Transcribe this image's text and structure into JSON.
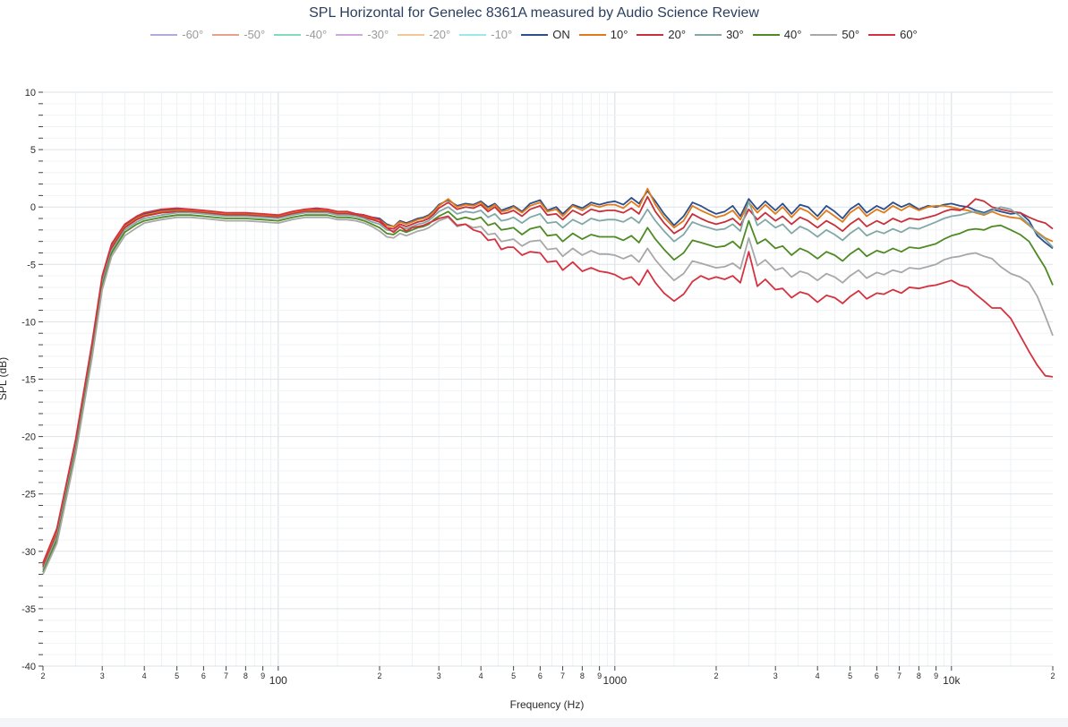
{
  "chart_data": {
    "type": "line",
    "title": "SPL Horizontal for Genelec 8361A measured by Audio Science Review",
    "xlabel": "Frequency (Hz)",
    "ylabel": "SPL (dB)",
    "xscale": "log",
    "xlim": [
      20,
      20000
    ],
    "ylim": [
      -40,
      10
    ],
    "grid": true,
    "legend_position": "top-center",
    "y_ticks": [
      "10",
      "5",
      "0",
      "-5",
      "-10",
      "-15",
      "-20",
      "-25",
      "-30",
      "-35",
      "-40"
    ],
    "x_ticks": [
      {
        "value": 20,
        "label": "2"
      },
      {
        "value": 30,
        "label": "3"
      },
      {
        "value": 40,
        "label": "4"
      },
      {
        "value": 50,
        "label": "5"
      },
      {
        "value": 60,
        "label": "6"
      },
      {
        "value": 70,
        "label": "7"
      },
      {
        "value": 80,
        "label": "8"
      },
      {
        "value": 90,
        "label": "9"
      },
      {
        "value": 100,
        "label": "100"
      },
      {
        "value": 200,
        "label": "2"
      },
      {
        "value": 300,
        "label": "3"
      },
      {
        "value": 400,
        "label": "4"
      },
      {
        "value": 500,
        "label": "5"
      },
      {
        "value": 600,
        "label": "6"
      },
      {
        "value": 700,
        "label": "7"
      },
      {
        "value": 800,
        "label": "8"
      },
      {
        "value": 900,
        "label": "9"
      },
      {
        "value": 1000,
        "label": "1000"
      },
      {
        "value": 2000,
        "label": "2"
      },
      {
        "value": 3000,
        "label": "3"
      },
      {
        "value": 4000,
        "label": "4"
      },
      {
        "value": 5000,
        "label": "5"
      },
      {
        "value": 6000,
        "label": "6"
      },
      {
        "value": 7000,
        "label": "7"
      },
      {
        "value": 8000,
        "label": "8"
      },
      {
        "value": 9000,
        "label": "9"
      },
      {
        "value": 10000,
        "label": "10k"
      },
      {
        "value": 20000,
        "label": "2"
      }
    ],
    "x": [
      20,
      22,
      25,
      28,
      30,
      32,
      35,
      38,
      40,
      45,
      50,
      55,
      60,
      70,
      80,
      90,
      100,
      110,
      120,
      130,
      140,
      150,
      160,
      170,
      180,
      190,
      200,
      210,
      220,
      230,
      240,
      250,
      260,
      270,
      280,
      290,
      300,
      320,
      340,
      360,
      380,
      400,
      420,
      440,
      460,
      480,
      500,
      530,
      560,
      600,
      630,
      670,
      700,
      750,
      800,
      850,
      900,
      950,
      1000,
      1060,
      1120,
      1180,
      1250,
      1320,
      1400,
      1500,
      1600,
      1700,
      1800,
      1900,
      2000,
      2120,
      2240,
      2360,
      2500,
      2650,
      2800,
      3000,
      3150,
      3350,
      3550,
      3750,
      4000,
      4250,
      4500,
      4750,
      5000,
      5300,
      5600,
      6000,
      6300,
      6700,
      7100,
      7500,
      8000,
      8500,
      9000,
      9500,
      10000,
      10600,
      11200,
      11800,
      12500,
      13200,
      14000,
      15000,
      16000,
      17000,
      18000,
      19000,
      20000
    ],
    "series": [
      {
        "name": "-60°",
        "color": "#b5a8e0",
        "visible": false,
        "values": null
      },
      {
        "name": "-50°",
        "color": "#e8a08a",
        "visible": false,
        "values": null
      },
      {
        "name": "-40°",
        "color": "#7fdcc0",
        "visible": false,
        "values": null
      },
      {
        "name": "-30°",
        "color": "#cfa8e0",
        "visible": false,
        "values": null
      },
      {
        "name": "-20°",
        "color": "#f5c59a",
        "visible": false,
        "values": null
      },
      {
        "name": "-10°",
        "color": "#9aeaea",
        "visible": false,
        "values": null
      },
      {
        "name": "ON",
        "color": "#2c4f8c",
        "visible": true,
        "values": [
          -31.2,
          -28.2,
          -20.5,
          -12.0,
          -6.2,
          -3.4,
          -1.6,
          -0.9,
          -0.6,
          -0.3,
          -0.2,
          -0.3,
          -0.4,
          -0.6,
          -0.6,
          -0.7,
          -0.8,
          -0.5,
          -0.3,
          -0.2,
          -0.3,
          -0.5,
          -0.4,
          -0.6,
          -0.7,
          -0.9,
          -1.0,
          -1.5,
          -1.7,
          -1.2,
          -1.4,
          -1.2,
          -1.0,
          -0.9,
          -0.7,
          -0.3,
          0.2,
          0.6,
          0.1,
          0.3,
          0.2,
          0.5,
          0.0,
          0.3,
          -0.3,
          -0.1,
          0.1,
          -0.4,
          0.3,
          0.6,
          -0.3,
          0.0,
          -0.6,
          0.2,
          -0.1,
          0.4,
          0.2,
          0.4,
          0.5,
          0.2,
          0.8,
          0.3,
          1.4,
          0.5,
          -0.6,
          -1.6,
          -0.8,
          0.4,
          0.1,
          -0.3,
          -0.6,
          -0.4,
          0.1,
          -0.8,
          0.7,
          -0.2,
          0.5,
          -0.3,
          0.3,
          -0.6,
          0.2,
          0.0,
          -0.8,
          0.1,
          -0.4,
          -1.0,
          -0.2,
          0.3,
          -0.5,
          0.1,
          -0.2,
          0.4,
          0.0,
          0.3,
          -0.2,
          0.1,
          0.0,
          0.2,
          0.3,
          0.1,
          0.0,
          -0.3,
          -0.5,
          -0.2,
          -0.4,
          -0.6,
          -0.5,
          -1.2,
          -2.5,
          -3.1,
          -3.6
        ]
      },
      {
        "name": "10°",
        "color": "#e07b1a",
        "visible": true,
        "values": [
          -31.3,
          -28.3,
          -20.6,
          -12.1,
          -6.3,
          -3.5,
          -1.7,
          -1.0,
          -0.7,
          -0.4,
          -0.3,
          -0.3,
          -0.4,
          -0.6,
          -0.6,
          -0.7,
          -0.8,
          -0.5,
          -0.3,
          -0.3,
          -0.3,
          -0.5,
          -0.5,
          -0.6,
          -0.8,
          -1.0,
          -1.1,
          -1.6,
          -1.7,
          -1.3,
          -1.5,
          -1.3,
          -1.1,
          -1.0,
          -0.8,
          -0.4,
          0.1,
          0.7,
          0.0,
          0.2,
          0.1,
          0.4,
          -0.2,
          0.2,
          -0.4,
          -0.3,
          0.0,
          -0.5,
          0.1,
          0.4,
          -0.4,
          -0.2,
          -0.8,
          0.1,
          -0.3,
          0.2,
          0.0,
          0.2,
          0.2,
          -0.1,
          0.5,
          0.0,
          1.6,
          0.2,
          -0.9,
          -1.8,
          -1.2,
          0.1,
          -0.3,
          -0.6,
          -0.9,
          -0.7,
          -0.3,
          -1.1,
          0.4,
          -0.5,
          0.2,
          -0.6,
          0.0,
          -0.9,
          -0.1,
          -0.4,
          -1.1,
          -0.3,
          -0.8,
          -1.3,
          -0.5,
          0.0,
          -0.8,
          -0.2,
          -0.5,
          0.1,
          -0.3,
          0.1,
          -0.3,
          0.0,
          0.1,
          0.1,
          0.0,
          -0.2,
          -0.3,
          -0.5,
          -0.7,
          -0.4,
          -0.7,
          -0.9,
          -1.0,
          -1.6,
          -2.2,
          -2.7,
          -3.0
        ]
      },
      {
        "name": "20°",
        "color": "#c8303a",
        "visible": true,
        "values": [
          -31.4,
          -28.5,
          -20.8,
          -12.3,
          -6.4,
          -3.6,
          -1.8,
          -1.1,
          -0.8,
          -0.5,
          -0.4,
          -0.4,
          -0.5,
          -0.7,
          -0.7,
          -0.8,
          -0.9,
          -0.6,
          -0.4,
          -0.4,
          -0.4,
          -0.6,
          -0.6,
          -0.7,
          -0.9,
          -1.1,
          -1.3,
          -1.8,
          -1.9,
          -1.5,
          -1.7,
          -1.5,
          -1.3,
          -1.2,
          -1.0,
          -0.6,
          -0.1,
          0.4,
          -0.2,
          0.0,
          -0.1,
          0.2,
          -0.4,
          0.0,
          -0.6,
          -0.5,
          -0.3,
          -0.8,
          -0.2,
          0.1,
          -0.7,
          -0.6,
          -1.1,
          -0.3,
          -0.7,
          -0.2,
          -0.4,
          -0.3,
          -0.3,
          -0.5,
          -0.1,
          -0.6,
          0.9,
          -0.4,
          -1.4,
          -2.3,
          -1.8,
          -0.6,
          -1.0,
          -1.3,
          -1.5,
          -1.3,
          -1.0,
          -1.6,
          -0.2,
          -1.1,
          -0.5,
          -1.2,
          -0.8,
          -1.5,
          -0.9,
          -1.2,
          -1.8,
          -1.2,
          -1.6,
          -2.1,
          -1.5,
          -1.0,
          -1.7,
          -1.2,
          -1.5,
          -1.0,
          -1.3,
          -1.0,
          -1.1,
          -0.9,
          -0.7,
          -0.4,
          -0.2,
          -0.3,
          0.1,
          0.7,
          0.5,
          0.0,
          -0.2,
          -0.4,
          -0.5,
          -0.9,
          -1.2,
          -1.4,
          -1.9
        ]
      },
      {
        "name": "30°",
        "color": "#82a8a6",
        "visible": true,
        "values": [
          -31.6,
          -28.7,
          -21.0,
          -12.5,
          -6.6,
          -3.8,
          -2.0,
          -1.3,
          -1.0,
          -0.7,
          -0.5,
          -0.5,
          -0.6,
          -0.8,
          -0.8,
          -0.9,
          -1.0,
          -0.7,
          -0.5,
          -0.5,
          -0.5,
          -0.7,
          -0.7,
          -0.8,
          -1.0,
          -1.3,
          -1.5,
          -2.0,
          -2.1,
          -1.7,
          -1.9,
          -1.7,
          -1.5,
          -1.4,
          -1.2,
          -0.8,
          -0.4,
          0.0,
          -0.6,
          -0.4,
          -0.5,
          -0.3,
          -0.9,
          -0.6,
          -1.2,
          -1.1,
          -0.9,
          -1.4,
          -0.9,
          -0.6,
          -1.4,
          -1.3,
          -1.8,
          -1.1,
          -1.5,
          -1.0,
          -1.2,
          -1.1,
          -1.1,
          -1.3,
          -0.9,
          -1.4,
          -0.2,
          -1.2,
          -2.1,
          -3.0,
          -2.4,
          -1.3,
          -1.6,
          -1.8,
          -2.0,
          -1.9,
          -1.5,
          -2.1,
          0.5,
          -1.6,
          -1.1,
          -1.8,
          -1.5,
          -2.3,
          -1.7,
          -2.0,
          -2.6,
          -2.0,
          -2.4,
          -2.9,
          -2.3,
          -1.8,
          -2.5,
          -2.1,
          -2.3,
          -1.9,
          -2.2,
          -1.8,
          -1.9,
          -1.6,
          -1.3,
          -1.0,
          -0.8,
          -0.7,
          -0.5,
          -0.4,
          -0.6,
          -0.3,
          0.0,
          -0.2,
          -0.8,
          -1.5,
          -2.3,
          -2.8,
          -3.5
        ]
      },
      {
        "name": "40°",
        "color": "#4f8a24",
        "visible": true,
        "values": [
          -31.8,
          -29.0,
          -21.3,
          -12.8,
          -6.9,
          -4.0,
          -2.2,
          -1.5,
          -1.2,
          -0.9,
          -0.7,
          -0.7,
          -0.8,
          -1.0,
          -1.0,
          -1.1,
          -1.2,
          -0.9,
          -0.7,
          -0.7,
          -0.7,
          -0.9,
          -0.9,
          -1.0,
          -1.2,
          -1.5,
          -1.8,
          -2.3,
          -2.4,
          -2.0,
          -2.2,
          -2.0,
          -1.8,
          -1.7,
          -1.5,
          -1.1,
          -0.8,
          -0.4,
          -1.1,
          -0.9,
          -1.1,
          -0.9,
          -1.6,
          -1.4,
          -2.0,
          -1.9,
          -1.8,
          -2.4,
          -1.9,
          -1.7,
          -2.5,
          -2.4,
          -3.0,
          -2.3,
          -2.8,
          -2.4,
          -2.6,
          -2.6,
          -2.6,
          -2.9,
          -2.5,
          -3.1,
          -1.8,
          -2.8,
          -3.7,
          -4.6,
          -4.0,
          -2.9,
          -3.1,
          -3.3,
          -3.5,
          -3.4,
          -3.0,
          -3.6,
          -1.2,
          -3.2,
          -2.8,
          -3.6,
          -3.4,
          -4.2,
          -3.6,
          -3.9,
          -4.5,
          -3.9,
          -4.2,
          -4.7,
          -4.1,
          -3.6,
          -4.3,
          -3.8,
          -4.0,
          -3.6,
          -3.9,
          -3.5,
          -3.6,
          -3.4,
          -3.2,
          -2.8,
          -2.5,
          -2.3,
          -2.0,
          -1.9,
          -2.0,
          -1.7,
          -1.6,
          -2.0,
          -2.4,
          -3.0,
          -4.2,
          -5.3,
          -6.8
        ]
      },
      {
        "name": "50°",
        "color": "#a8a8a8",
        "visible": true,
        "values": [
          -32.0,
          -29.3,
          -21.6,
          -13.1,
          -7.2,
          -4.3,
          -2.5,
          -1.8,
          -1.4,
          -1.1,
          -0.9,
          -0.9,
          -1.0,
          -1.2,
          -1.2,
          -1.3,
          -1.4,
          -1.1,
          -0.9,
          -0.9,
          -0.9,
          -1.1,
          -1.1,
          -1.2,
          -1.4,
          -1.7,
          -2.1,
          -2.6,
          -2.7,
          -2.3,
          -2.5,
          -2.3,
          -2.1,
          -2.0,
          -1.8,
          -1.5,
          -1.2,
          -0.9,
          -1.7,
          -1.5,
          -1.8,
          -1.7,
          -2.4,
          -2.3,
          -3.0,
          -2.9,
          -2.8,
          -3.4,
          -3.0,
          -2.9,
          -3.7,
          -3.6,
          -4.3,
          -3.6,
          -4.2,
          -3.8,
          -4.1,
          -4.1,
          -4.2,
          -4.5,
          -4.2,
          -4.8,
          -3.6,
          -4.6,
          -5.5,
          -6.4,
          -5.8,
          -4.7,
          -4.9,
          -5.1,
          -5.3,
          -5.2,
          -4.9,
          -5.4,
          -2.7,
          -5.1,
          -4.6,
          -5.5,
          -5.3,
          -6.1,
          -5.6,
          -5.8,
          -6.4,
          -5.8,
          -6.1,
          -6.6,
          -6.0,
          -5.5,
          -6.2,
          -5.7,
          -5.9,
          -5.5,
          -5.7,
          -5.3,
          -5.4,
          -5.2,
          -5.0,
          -4.6,
          -4.4,
          -4.3,
          -4.1,
          -4.0,
          -4.3,
          -4.5,
          -5.2,
          -5.8,
          -6.1,
          -6.6,
          -7.8,
          -9.5,
          -11.2
        ]
      },
      {
        "name": "60°",
        "color": "#d5323f",
        "visible": true,
        "values": [
          -31.0,
          -28.0,
          -20.3,
          -11.8,
          -6.0,
          -3.2,
          -1.5,
          -0.8,
          -0.5,
          -0.2,
          -0.1,
          -0.2,
          -0.3,
          -0.5,
          -0.5,
          -0.6,
          -0.7,
          -0.4,
          -0.2,
          -0.1,
          -0.2,
          -0.4,
          -0.4,
          -0.6,
          -0.7,
          -0.9,
          -1.1,
          -1.8,
          -2.2,
          -1.7,
          -2.1,
          -1.8,
          -1.7,
          -1.6,
          -1.4,
          -1.2,
          -1.0,
          -0.8,
          -1.6,
          -1.5,
          -2.0,
          -2.2,
          -2.9,
          -2.8,
          -3.7,
          -3.5,
          -3.5,
          -4.2,
          -3.9,
          -4.0,
          -4.8,
          -4.7,
          -5.5,
          -4.8,
          -5.6,
          -5.3,
          -5.6,
          -5.7,
          -5.9,
          -6.3,
          -6.1,
          -6.8,
          -5.5,
          -6.6,
          -7.5,
          -8.2,
          -7.6,
          -6.5,
          -6.0,
          -6.3,
          -6.1,
          -6.3,
          -6.0,
          -6.6,
          -3.9,
          -6.9,
          -6.3,
          -7.2,
          -7.1,
          -7.9,
          -7.4,
          -7.6,
          -8.3,
          -7.7,
          -7.9,
          -8.4,
          -7.8,
          -7.3,
          -8.0,
          -7.5,
          -7.6,
          -7.2,
          -7.5,
          -7.0,
          -7.1,
          -6.9,
          -6.8,
          -6.6,
          -6.4,
          -6.8,
          -7.0,
          -7.6,
          -8.2,
          -8.8,
          -8.8,
          -9.7,
          -11.2,
          -12.6,
          -13.8,
          -14.7,
          -14.8
        ]
      }
    ]
  }
}
